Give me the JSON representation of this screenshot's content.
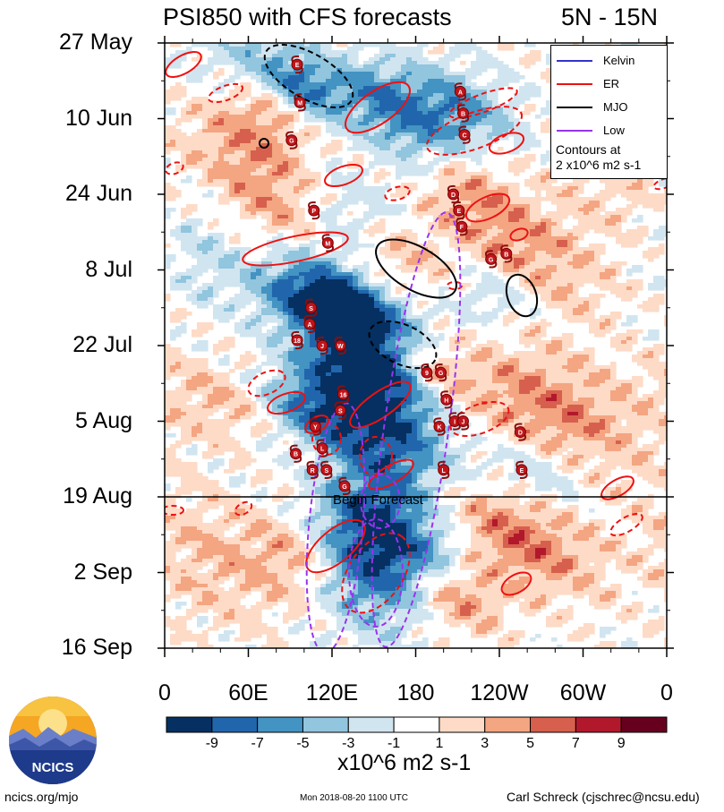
{
  "header": {
    "title": "PSI850 with CFS forecasts",
    "region": "5N - 15N"
  },
  "chart_data": {
    "type": "heatmap",
    "title": "PSI850 with CFS forecasts",
    "region": "5N - 15N",
    "y_axis": {
      "labels": [
        "27 May",
        "10 Jun",
        "24 Jun",
        "8 Jul",
        "22 Jul",
        "5 Aug",
        "19 Aug",
        "2 Sep",
        "16 Sep"
      ],
      "direction": "time increasing downward"
    },
    "x_axis": {
      "labels": [
        "0",
        "60E",
        "120E",
        "180",
        "120W",
        "60W",
        "0"
      ],
      "range_deg": [
        0,
        360
      ]
    },
    "forecast_start_label": "Begin Forecast",
    "forecast_start_date": "19 Aug",
    "colorbar": {
      "tick_labels": [
        "-9",
        "-7",
        "-5",
        "-3",
        "-1",
        "1",
        "3",
        "5",
        "7",
        "9"
      ],
      "colors": [
        "#053061",
        "#2166ac",
        "#4393c3",
        "#92c5de",
        "#d1e5f0",
        "#ffffff",
        "#fddbc7",
        "#f4a582",
        "#d6604d",
        "#b2182b",
        "#67001f"
      ],
      "units": "x10^6 m2 s-1"
    },
    "legend": {
      "entries": [
        {
          "label": "Kelvin",
          "color": "#3333cc"
        },
        {
          "label": "ER",
          "color": "#ee1111"
        },
        {
          "label": "MJO",
          "color": "#000000"
        },
        {
          "label": "Low",
          "color": "#9933ee"
        }
      ],
      "note_line1": "Contours at",
      "note_line2": "2 x10^6 m2 s-1"
    },
    "storms": [
      {
        "label": "E",
        "lon": 95,
        "date": "31 May"
      },
      {
        "label": "M",
        "lon": 97,
        "date": "7 Jun"
      },
      {
        "label": "G",
        "lon": 91,
        "date": "14 Jun"
      },
      {
        "label": "A",
        "lon": 212,
        "date": "5 Jun"
      },
      {
        "label": "B",
        "lon": 214,
        "date": "9 Jun"
      },
      {
        "label": "C",
        "lon": 215,
        "date": "13 Jun"
      },
      {
        "label": "D",
        "lon": 207,
        "date": "24 Jun"
      },
      {
        "label": "E",
        "lon": 211,
        "date": "27 Jun"
      },
      {
        "label": "F",
        "lon": 213,
        "date": "30 Jun"
      },
      {
        "label": "G",
        "lon": 234,
        "date": "6 Jul"
      },
      {
        "label": "B",
        "lon": 245,
        "date": "5 Jul"
      },
      {
        "label": "P",
        "lon": 107,
        "date": "27 Jun"
      },
      {
        "label": "M",
        "lon": 117,
        "date": "3 Jul"
      },
      {
        "label": "S",
        "lon": 105,
        "date": "15 Jul"
      },
      {
        "label": "A",
        "lon": 104,
        "date": "18 Jul"
      },
      {
        "label": "18",
        "lon": 95,
        "date": "21 Jul"
      },
      {
        "label": "J",
        "lon": 113,
        "date": "22 Jul"
      },
      {
        "label": "W",
        "lon": 126,
        "date": "22 Jul"
      },
      {
        "label": "9",
        "lon": 188,
        "date": "27 Jul"
      },
      {
        "label": "G",
        "lon": 198,
        "date": "27 Jul"
      },
      {
        "label": "16",
        "lon": 128,
        "date": "31 Jul"
      },
      {
        "label": "H",
        "lon": 202,
        "date": "1 Aug"
      },
      {
        "label": "S",
        "lon": 126,
        "date": "3 Aug"
      },
      {
        "label": "Y",
        "lon": 108,
        "date": "6 Aug"
      },
      {
        "label": "K",
        "lon": 197,
        "date": "6 Aug"
      },
      {
        "label": "I",
        "lon": 208,
        "date": "5 Aug"
      },
      {
        "label": "J",
        "lon": 214,
        "date": "5 Aug"
      },
      {
        "label": "D",
        "lon": 255,
        "date": "7 Aug"
      },
      {
        "label": "B",
        "lon": 94,
        "date": "11 Aug"
      },
      {
        "label": "L",
        "lon": 113,
        "date": "10 Aug"
      },
      {
        "label": "R",
        "lon": 106,
        "date": "14 Aug"
      },
      {
        "label": "S",
        "lon": 116,
        "date": "14 Aug"
      },
      {
        "label": "L",
        "lon": 200,
        "date": "14 Aug"
      },
      {
        "label": "E",
        "lon": 256,
        "date": "14 Aug"
      },
      {
        "label": "G",
        "lon": 129,
        "date": "17 Aug"
      }
    ]
  },
  "footer": {
    "url": "ncics.org/mjo",
    "timestamp": "Mon 2018-08-20 1100 UTC",
    "author": "Carl Schreck (cjschrec@ncsu.edu)"
  },
  "logo": {
    "text": "NCICS"
  }
}
